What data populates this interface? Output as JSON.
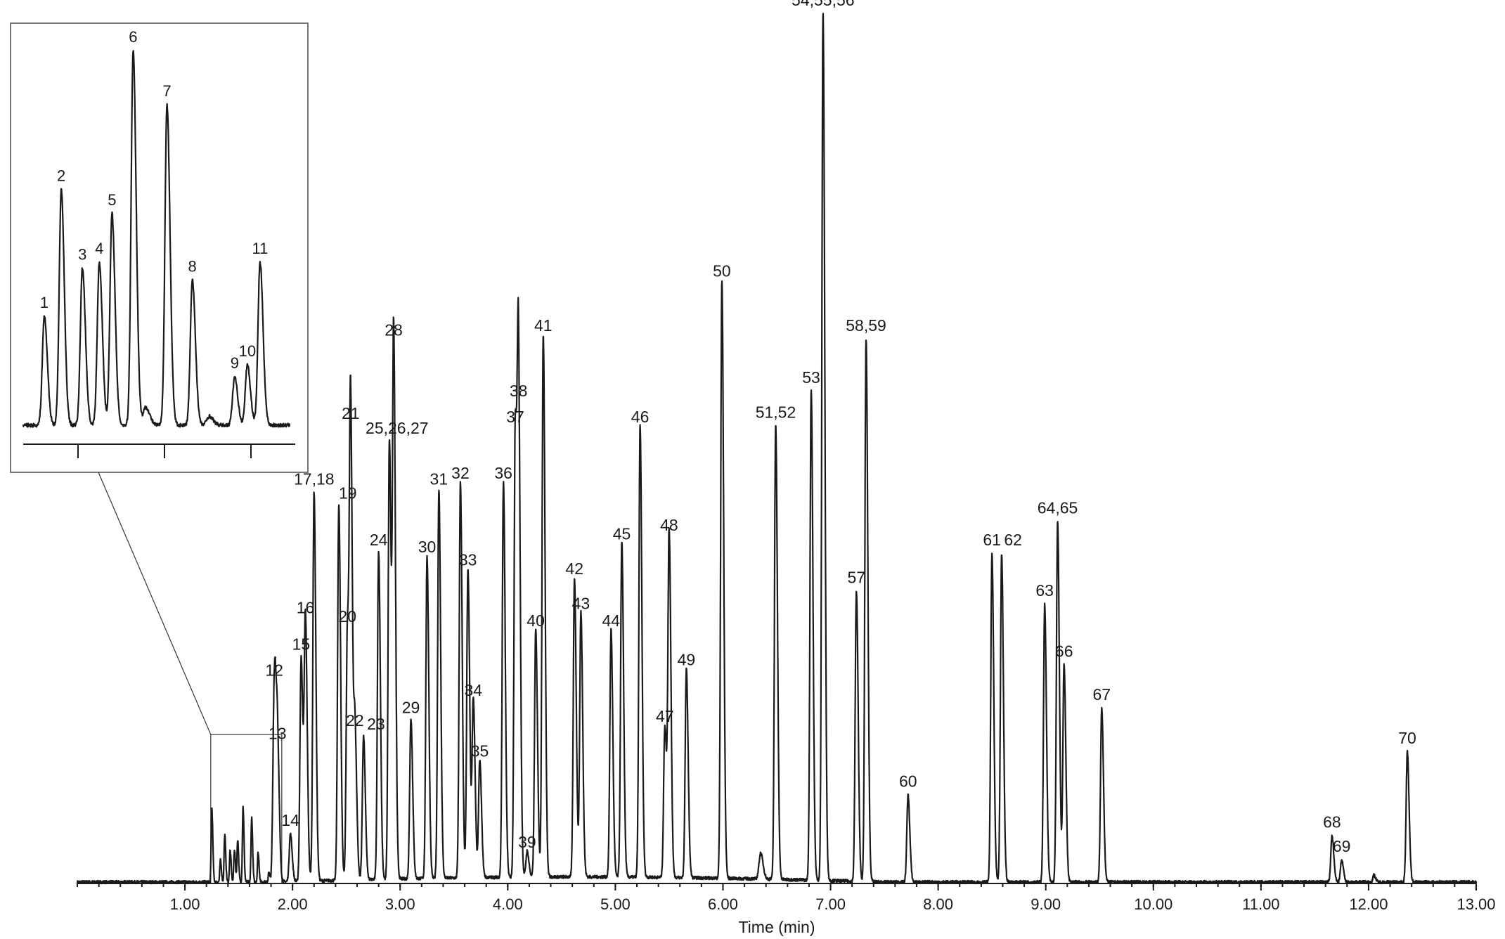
{
  "chart_data": {
    "type": "line",
    "xlabel": "Time (min)",
    "xlim": [
      0.0,
      13.0
    ],
    "x_ticks": [
      1.0,
      2.0,
      3.0,
      4.0,
      5.0,
      6.0,
      7.0,
      8.0,
      9.0,
      10.0,
      11.0,
      12.0,
      13.0
    ],
    "x_tick_labels": [
      "1.00",
      "2.00",
      "3.00",
      "4.00",
      "5.00",
      "6.00",
      "7.00",
      "8.00",
      "9.00",
      "10.00",
      "11.00",
      "12.00",
      "13.00"
    ],
    "ylim": [
      0,
      100
    ],
    "grid": false,
    "peaks": [
      {
        "label": "12",
        "x": 1.83,
        "y": 22.8
      },
      {
        "label": "13",
        "x": 1.86,
        "y": 15.5
      },
      {
        "label": "14",
        "x": 1.98,
        "y": 5.5
      },
      {
        "label": "15",
        "x": 2.08,
        "y": 25.8
      },
      {
        "label": "16",
        "x": 2.12,
        "y": 30.0
      },
      {
        "label": "17,18",
        "x": 2.2,
        "y": 44.8
      },
      {
        "label": "19",
        "x": 2.43,
        "y": 43.2
      },
      {
        "label": "20",
        "x": 2.51,
        "y": 29.0
      },
      {
        "label": "21",
        "x": 2.54,
        "y": 52.4
      },
      {
        "label": "22",
        "x": 2.58,
        "y": 17.0
      },
      {
        "label": "23",
        "x": 2.66,
        "y": 16.6
      },
      {
        "label": "24",
        "x": 2.8,
        "y": 37.8
      },
      {
        "label": "25,26,27",
        "x": 2.9,
        "y": 50.7
      },
      {
        "label": "28",
        "x": 2.94,
        "y": 62.0
      },
      {
        "label": "29",
        "x": 3.1,
        "y": 18.5
      },
      {
        "label": "30",
        "x": 3.25,
        "y": 37.0
      },
      {
        "label": "31",
        "x": 3.36,
        "y": 44.8
      },
      {
        "label": "32",
        "x": 3.56,
        "y": 45.5
      },
      {
        "label": "33",
        "x": 3.63,
        "y": 35.5
      },
      {
        "label": "34",
        "x": 3.68,
        "y": 20.5
      },
      {
        "label": "35",
        "x": 3.74,
        "y": 13.5
      },
      {
        "label": "36",
        "x": 3.96,
        "y": 45.5
      },
      {
        "label": "37",
        "x": 4.07,
        "y": 52.0
      },
      {
        "label": "38",
        "x": 4.1,
        "y": 55.0
      },
      {
        "label": "39",
        "x": 4.18,
        "y": 3.0
      },
      {
        "label": "40",
        "x": 4.26,
        "y": 28.5
      },
      {
        "label": "41",
        "x": 4.33,
        "y": 62.5
      },
      {
        "label": "42",
        "x": 4.62,
        "y": 34.5
      },
      {
        "label": "43",
        "x": 4.68,
        "y": 30.5
      },
      {
        "label": "44",
        "x": 4.96,
        "y": 28.5
      },
      {
        "label": "45",
        "x": 5.06,
        "y": 38.5
      },
      {
        "label": "46",
        "x": 5.23,
        "y": 52.0
      },
      {
        "label": "47",
        "x": 5.46,
        "y": 17.5
      },
      {
        "label": "48",
        "x": 5.5,
        "y": 39.5
      },
      {
        "label": "49",
        "x": 5.66,
        "y": 24.0
      },
      {
        "label": "50",
        "x": 5.99,
        "y": 68.8
      },
      {
        "label": "51,52",
        "x": 6.49,
        "y": 52.5
      },
      {
        "label": "53",
        "x": 6.82,
        "y": 56.5
      },
      {
        "label": "54,55,56",
        "x": 6.93,
        "y": 100.0
      },
      {
        "label": "57",
        "x": 7.24,
        "y": 33.5
      },
      {
        "label": "58,59",
        "x": 7.33,
        "y": 62.5
      },
      {
        "label": "60",
        "x": 7.72,
        "y": 10.0
      },
      {
        "label": "61",
        "x": 8.5,
        "y": 37.8
      },
      {
        "label": "62",
        "x": 8.59,
        "y": 37.8
      },
      {
        "label": "63",
        "x": 8.99,
        "y": 32.0
      },
      {
        "label": "64,65",
        "x": 9.11,
        "y": 41.5
      },
      {
        "label": "66",
        "x": 9.17,
        "y": 25.0
      },
      {
        "label": "67",
        "x": 9.52,
        "y": 20.0
      },
      {
        "label": "68",
        "x": 11.66,
        "y": 5.3
      },
      {
        "label": "69",
        "x": 11.75,
        "y": 2.5
      },
      {
        "label": "70",
        "x": 12.36,
        "y": 15.0
      }
    ],
    "inset": {
      "xlim": [
        1.3,
        1.9
      ],
      "peaks": [
        {
          "label": "1",
          "x": 1.33,
          "y": 18
        },
        {
          "label": "2",
          "x": 1.37,
          "y": 39
        },
        {
          "label": "3",
          "x": 1.42,
          "y": 26
        },
        {
          "label": "4",
          "x": 1.46,
          "y": 27
        },
        {
          "label": "5",
          "x": 1.49,
          "y": 35
        },
        {
          "label": "6",
          "x": 1.54,
          "y": 62
        },
        {
          "label": "7",
          "x": 1.62,
          "y": 53
        },
        {
          "label": "8",
          "x": 1.68,
          "y": 24
        },
        {
          "label": "9",
          "x": 1.78,
          "y": 8
        },
        {
          "label": "10",
          "x": 1.81,
          "y": 10
        },
        {
          "label": "11",
          "x": 1.84,
          "y": 27
        }
      ]
    }
  }
}
